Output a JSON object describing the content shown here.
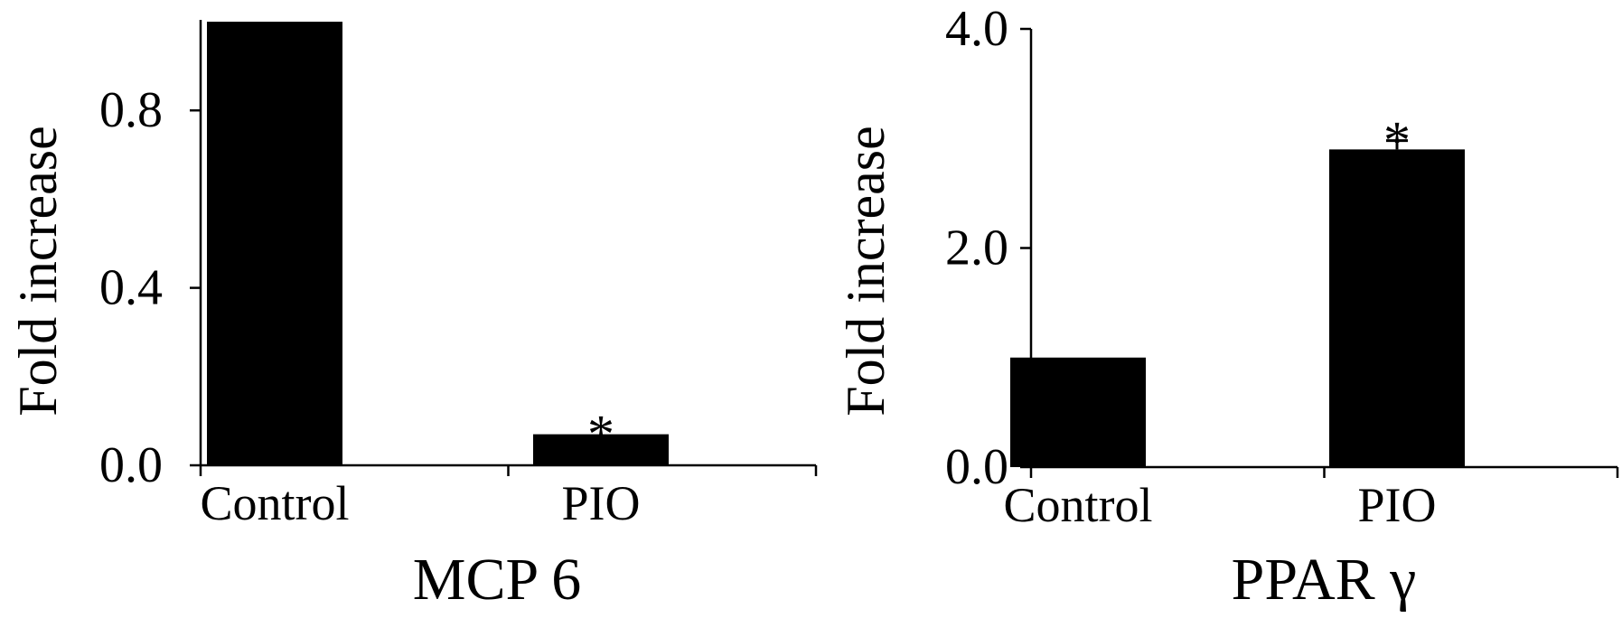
{
  "chart_data": [
    {
      "type": "bar",
      "categories": [
        "Control",
        "PIO"
      ],
      "values": [
        1.0,
        0.07
      ],
      "errors": [
        0,
        0
      ],
      "significance": [
        "",
        "*"
      ],
      "ylabel": "Fold increase",
      "xlabel": "MCP 6",
      "ylim": [
        0,
        1.0
      ],
      "yticks": [
        "0.0",
        "0.4",
        "0.8"
      ],
      "ytick_values": [
        0,
        0.4,
        0.8
      ],
      "bar_color": "#000000"
    },
    {
      "type": "bar",
      "categories": [
        "Control",
        "PIO"
      ],
      "values": [
        1.0,
        2.9
      ],
      "errors": [
        0,
        0.08
      ],
      "significance": [
        "",
        "*"
      ],
      "ylabel": "Fold increase",
      "xlabel": "PPAR γ",
      "ylim": [
        0,
        4.0
      ],
      "yticks": [
        "0.0",
        "2.0",
        "4.0"
      ],
      "ytick_values": [
        0,
        2.0,
        4.0
      ],
      "bar_color": "#000000"
    }
  ]
}
